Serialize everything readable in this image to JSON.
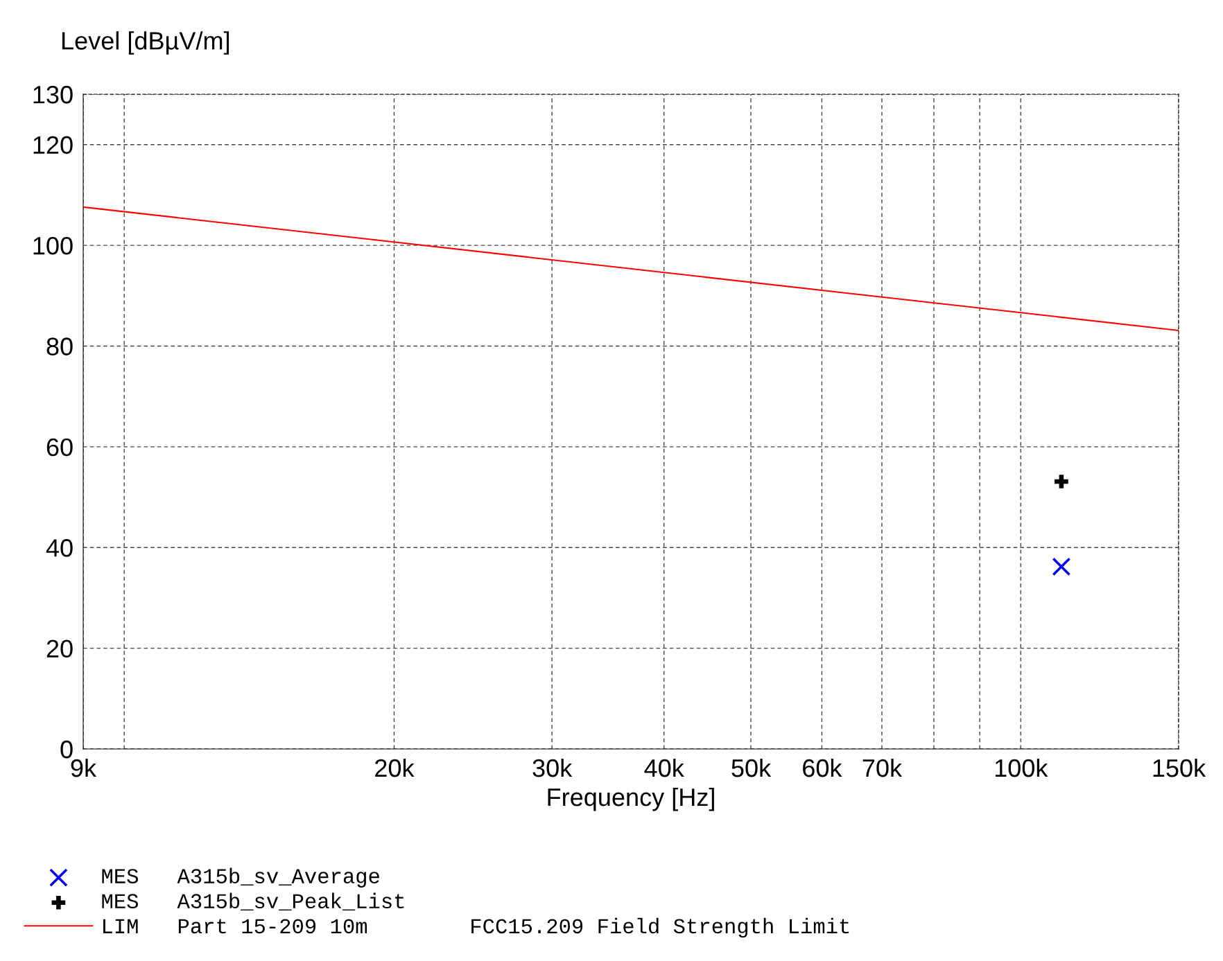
{
  "chart_data": {
    "type": "scatter",
    "xlabel": "Frequency [Hz]",
    "ylabel": "Level [dBµV/m]",
    "log": "x",
    "xlim": [
      9000,
      150000
    ],
    "ylim": [
      0,
      130
    ],
    "xticks": [
      {
        "value": 9000,
        "label": "9k"
      },
      {
        "value": 10000,
        "label": null
      },
      {
        "value": 20000,
        "label": "20k"
      },
      {
        "value": 30000,
        "label": "30k"
      },
      {
        "value": 40000,
        "label": "40k"
      },
      {
        "value": 50000,
        "label": "50k"
      },
      {
        "value": 60000,
        "label": "60k"
      },
      {
        "value": 70000,
        "label": "70k"
      },
      {
        "value": 80000,
        "label": null
      },
      {
        "value": 90000,
        "label": null
      },
      {
        "value": 100000,
        "label": "100k"
      },
      {
        "value": 150000,
        "label": "150k"
      }
    ],
    "yticks": [
      0,
      20,
      40,
      60,
      80,
      100,
      120,
      130
    ],
    "grid": true,
    "legend": "bottom",
    "series": [
      {
        "name": "MES   A315b_sv_Average",
        "marker": "cross",
        "color": "#0000ff",
        "x": [
          111000
        ],
        "values": [
          36.2
        ]
      },
      {
        "name": "MES   A315b_sv_Peak_List",
        "marker": "plus",
        "color": "#000000",
        "x": [
          111000
        ],
        "values": [
          53.1
        ]
      },
      {
        "name": "LIM   Part 15-209 10m        FCC15.209 Field Strength Limit",
        "type": "line",
        "marker": "none",
        "line_style": "solid",
        "color": "#ff0000",
        "x": [
          9000,
          150000
        ],
        "values": [
          107.6,
          83.1
        ]
      }
    ]
  }
}
